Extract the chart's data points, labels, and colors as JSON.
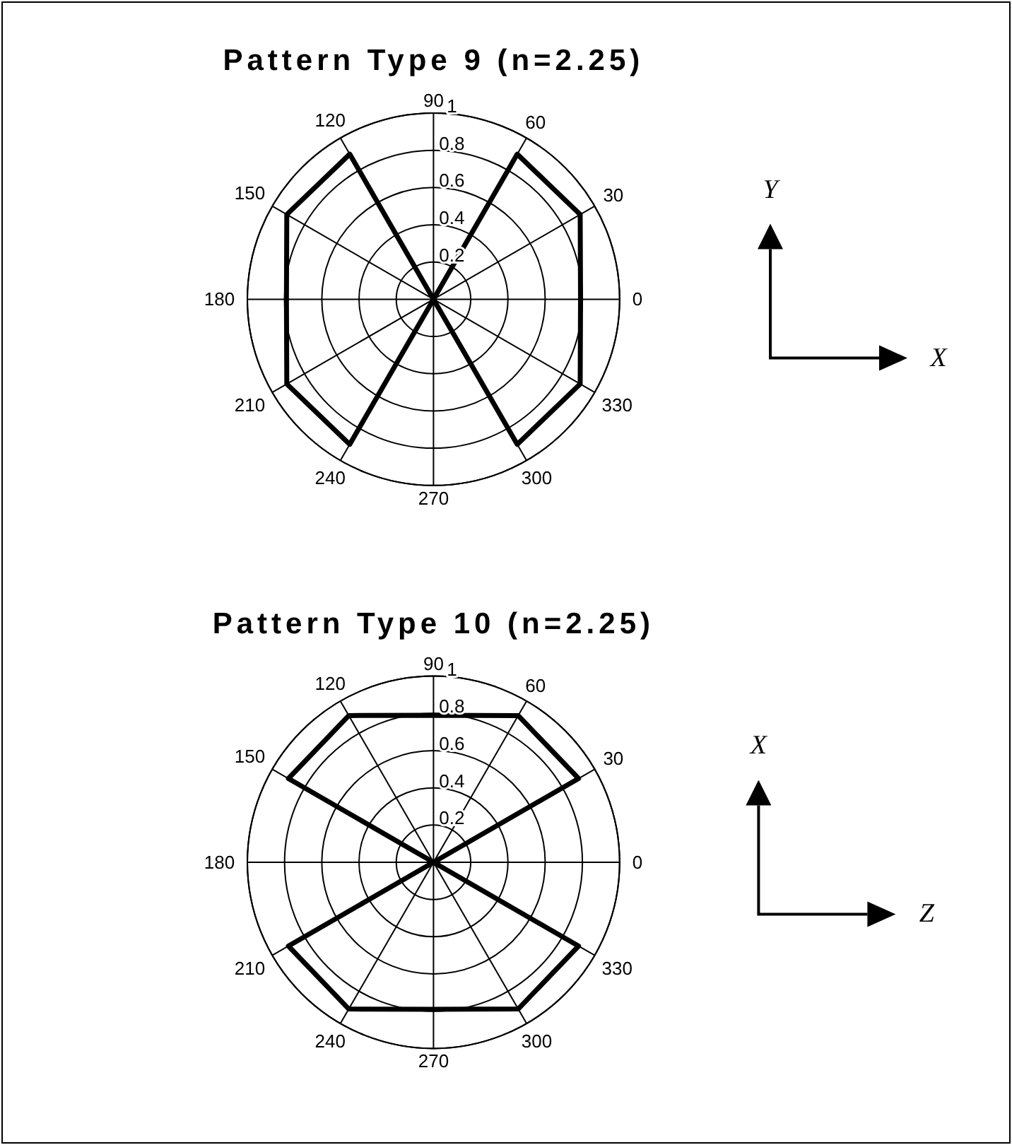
{
  "chart_data": [
    {
      "type": "radar",
      "title": "Pattern Type 9 (n=2.25)",
      "categories": [
        "90",
        "60",
        "30",
        "0",
        "330",
        "300",
        "270",
        "240",
        "210",
        "180",
        "150",
        "120"
      ],
      "series": [
        {
          "color": "#000000",
          "values": [
            0,
            0.9,
            0.91,
            0.79,
            0.91,
            0.9,
            0,
            0.9,
            0.91,
            0.79,
            0.91,
            0.9
          ]
        }
      ],
      "ylim": [
        0,
        1
      ],
      "yticks": [
        0.2,
        0.4,
        0.6,
        0.8,
        1
      ],
      "grid": true,
      "annotations": [
        "Y",
        "X"
      ]
    },
    {
      "type": "radar",
      "title": "Pattern Type 10 (n=2.25)",
      "categories": [
        "90",
        "60",
        "30",
        "0",
        "330",
        "300",
        "270",
        "240",
        "210",
        "180",
        "150",
        "120"
      ],
      "series": [
        {
          "color": "#000000",
          "values": [
            0.79,
            0.91,
            0.9,
            0,
            0.9,
            0.91,
            0.79,
            0.91,
            0.9,
            0,
            0.9,
            0.91
          ]
        }
      ],
      "ylim": [
        0,
        1
      ],
      "yticks": [
        0.2,
        0.4,
        0.6,
        0.8,
        1
      ],
      "grid": true,
      "annotations": [
        "X",
        "Z"
      ]
    }
  ]
}
